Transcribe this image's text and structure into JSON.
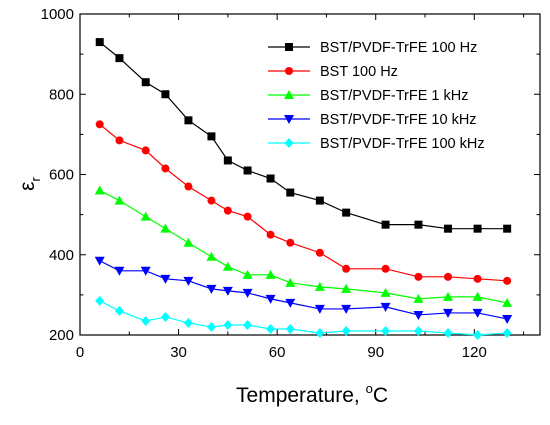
{
  "chart_data": {
    "type": "line",
    "title": "",
    "xlabel": {
      "text": "Temperature, ",
      "unit_sup": "o",
      "unit": "C"
    },
    "ylabel": {
      "symbol": "ε",
      "sub": "r"
    },
    "xlim": [
      0,
      140
    ],
    "ylim": [
      200,
      1000
    ],
    "xticks": [
      0,
      30,
      60,
      90,
      120
    ],
    "yticks": [
      200,
      400,
      600,
      800,
      1000
    ],
    "grid": false,
    "legend_position": "top-right",
    "series": [
      {
        "name": "BST/PVDF-TrFE 100 Hz",
        "color": "#000000",
        "marker": "square",
        "x": [
          6,
          12,
          20,
          26,
          33,
          40,
          45,
          51,
          58,
          64,
          73,
          81,
          93,
          103,
          112,
          121,
          130
        ],
        "y": [
          930,
          890,
          830,
          800,
          735,
          695,
          635,
          610,
          590,
          555,
          535,
          505,
          475,
          475,
          465,
          465,
          465
        ]
      },
      {
        "name": "BST 100 Hz",
        "color": "#ff0000",
        "marker": "circle",
        "x": [
          6,
          12,
          20,
          26,
          33,
          40,
          45,
          51,
          58,
          64,
          73,
          81,
          93,
          103,
          112,
          121,
          130
        ],
        "y": [
          725,
          685,
          660,
          615,
          570,
          535,
          510,
          495,
          450,
          430,
          405,
          365,
          365,
          345,
          345,
          340,
          335
        ]
      },
      {
        "name": "BST/PVDF-TrFE 1 kHz",
        "color": "#00ff00",
        "marker": "triangle-up",
        "x": [
          6,
          12,
          20,
          26,
          33,
          40,
          45,
          51,
          58,
          64,
          73,
          81,
          93,
          103,
          112,
          121,
          130
        ],
        "y": [
          560,
          535,
          495,
          465,
          430,
          395,
          370,
          350,
          350,
          330,
          320,
          315,
          305,
          290,
          295,
          295,
          280
        ]
      },
      {
        "name": "BST/PVDF-TrFE 10 kHz",
        "color": "#0000ff",
        "marker": "triangle-down",
        "x": [
          6,
          12,
          20,
          26,
          33,
          40,
          45,
          51,
          58,
          64,
          73,
          81,
          93,
          103,
          112,
          121,
          130
        ],
        "y": [
          385,
          360,
          360,
          340,
          335,
          315,
          310,
          305,
          290,
          280,
          265,
          265,
          270,
          250,
          255,
          255,
          240
        ]
      },
      {
        "name": "BST/PVDF-TrFE 100 kHz",
        "color": "#00ffff",
        "marker": "diamond",
        "x": [
          6,
          12,
          20,
          26,
          33,
          40,
          45,
          51,
          58,
          64,
          73,
          81,
          93,
          103,
          112,
          121,
          130
        ],
        "y": [
          285,
          260,
          235,
          245,
          230,
          220,
          225,
          225,
          215,
          215,
          205,
          210,
          210,
          210,
          205,
          200,
          205
        ]
      }
    ]
  }
}
